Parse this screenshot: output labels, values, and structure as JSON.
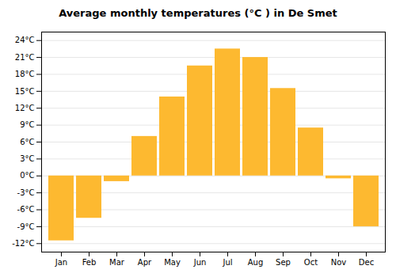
{
  "chart_data": {
    "type": "bar",
    "title": "Average monthly temperatures (°C ) in De Smet",
    "categories": [
      "Jan",
      "Feb",
      "Mar",
      "Apr",
      "May",
      "Jun",
      "Jul",
      "Aug",
      "Sep",
      "Oct",
      "Nov",
      "Dec"
    ],
    "values": [
      -11.5,
      -7.5,
      -1.0,
      7.0,
      14.0,
      19.5,
      22.5,
      21.0,
      15.5,
      8.5,
      -0.5,
      -9.0
    ],
    "color": "#FDB930",
    "ylim": [
      -13.5,
      25.5
    ],
    "yticks": [
      {
        "value": -12,
        "label": "-12°C"
      },
      {
        "value": -9,
        "label": "-9°C"
      },
      {
        "value": -6,
        "label": "-6°C"
      },
      {
        "value": -3,
        "label": "-3°C"
      },
      {
        "value": 0,
        "label": "0°C"
      },
      {
        "value": 3,
        "label": "3°C"
      },
      {
        "value": 6,
        "label": "6°C"
      },
      {
        "value": 9,
        "label": "9°C"
      },
      {
        "value": 12,
        "label": "12°C"
      },
      {
        "value": 15,
        "label": "15°C"
      },
      {
        "value": 18,
        "label": "18°C"
      },
      {
        "value": 21,
        "label": "21°C"
      },
      {
        "value": 24,
        "label": "24°C"
      }
    ],
    "grid": true
  }
}
